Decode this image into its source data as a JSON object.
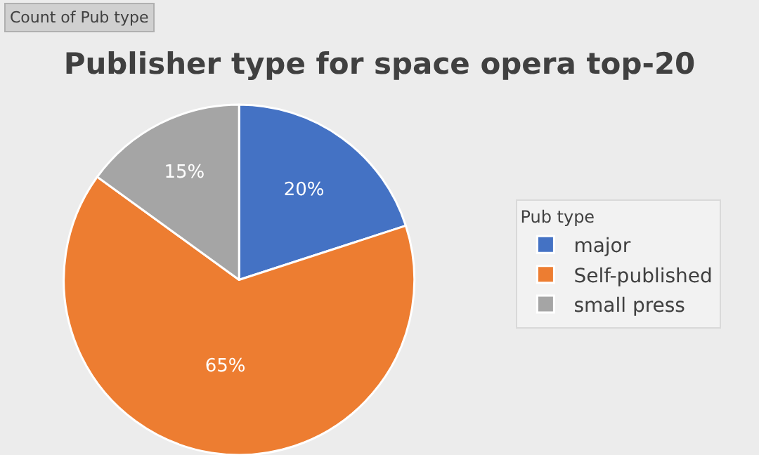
{
  "chart_data": {
    "type": "pie",
    "title": "Publisher type for space opera top-20",
    "categories": [
      "major",
      "Self-published",
      "small press"
    ],
    "values": [
      20,
      65,
      15
    ],
    "colors": [
      "#4472c4",
      "#ed7d31",
      "#a5a5a5"
    ],
    "value_labels": [
      "20%",
      "65%",
      "15%"
    ],
    "legend_title": "Pub type",
    "legend": "right",
    "annotations": [
      "Count of Pub type"
    ]
  }
}
